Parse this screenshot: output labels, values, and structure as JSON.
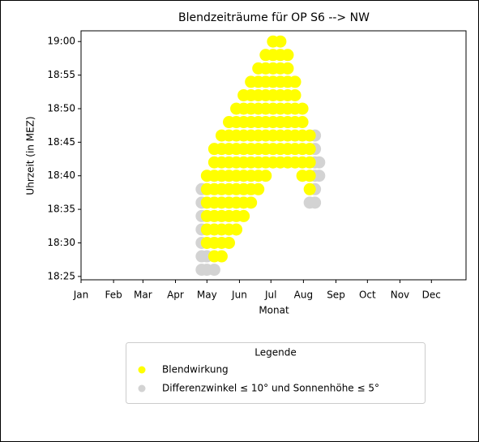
{
  "chart_data": {
    "type": "scatter",
    "title": "Blendzeiträume für OP S6 --> NW",
    "x_label": "Monat",
    "y_label": "Uhrzeit (in MEZ)",
    "xlim": [
      1,
      368
    ],
    "ylim": [
      1104.5,
      1141.6
    ],
    "xticks": [
      {
        "value": 1,
        "label": "Jan"
      },
      {
        "value": 32,
        "label": "Feb"
      },
      {
        "value": 60,
        "label": "Mar"
      },
      {
        "value": 91,
        "label": "Apr"
      },
      {
        "value": 121,
        "label": "May"
      },
      {
        "value": 152,
        "label": "Jun"
      },
      {
        "value": 182,
        "label": "Jul"
      },
      {
        "value": 213,
        "label": "Aug"
      },
      {
        "value": 244,
        "label": "Sep"
      },
      {
        "value": 274,
        "label": "Oct"
      },
      {
        "value": 305,
        "label": "Nov"
      },
      {
        "value": 335,
        "label": "Dec"
      }
    ],
    "yticks": [
      {
        "value": 1105,
        "label": "18:25"
      },
      {
        "value": 1110,
        "label": "18:30"
      },
      {
        "value": 1115,
        "label": "18:35"
      },
      {
        "value": 1120,
        "label": "18:40"
      },
      {
        "value": 1125,
        "label": "18:45"
      },
      {
        "value": 1130,
        "label": "18:50"
      },
      {
        "value": 1135,
        "label": "18:55"
      },
      {
        "value": 1140,
        "label": "19:00"
      }
    ],
    "legend_title": "Legende",
    "legend_position": "below",
    "series": [
      {
        "name": "Differenzwinkel ≤ 10° und Sonnenhöhe ≤ 5°",
        "color": "#d3d3d3",
        "x": [
          116,
          116,
          116,
          116,
          116,
          116,
          116,
          121,
          121,
          128,
          219,
          224,
          224,
          224,
          224,
          224,
          224,
          228,
          228
        ],
        "values": [
          1106,
          1108,
          1110,
          1112,
          1114,
          1116,
          1118,
          1106,
          1108,
          1106,
          1116,
          1116,
          1118,
          1120,
          1122,
          1124,
          1126,
          1120,
          1122
        ]
      },
      {
        "name": "Blendwirkung",
        "color": "#ffff00",
        "x": [
          121,
          121,
          121,
          121,
          121,
          121,
          128,
          128,
          128,
          128,
          128,
          128,
          128,
          128,
          128,
          135,
          135,
          135,
          135,
          135,
          135,
          135,
          135,
          135,
          135,
          142,
          142,
          142,
          142,
          142,
          142,
          142,
          142,
          142,
          142,
          149,
          149,
          149,
          149,
          149,
          149,
          149,
          149,
          149,
          149,
          156,
          156,
          156,
          156,
          156,
          156,
          156,
          156,
          156,
          156,
          163,
          163,
          163,
          163,
          163,
          163,
          163,
          163,
          163,
          163,
          170,
          170,
          170,
          170,
          170,
          170,
          170,
          170,
          170,
          170,
          177,
          177,
          177,
          177,
          177,
          177,
          177,
          177,
          177,
          177,
          184,
          184,
          184,
          184,
          184,
          184,
          184,
          184,
          184,
          184,
          191,
          191,
          191,
          191,
          191,
          191,
          191,
          191,
          191,
          191,
          198,
          198,
          198,
          198,
          198,
          198,
          198,
          198,
          198,
          205,
          205,
          205,
          205,
          205,
          205,
          205,
          212,
          212,
          212,
          212,
          212,
          212,
          219,
          219,
          219,
          219,
          219
        ],
        "values": [
          1110,
          1112,
          1114,
          1116,
          1118,
          1120,
          1108,
          1110,
          1112,
          1114,
          1116,
          1118,
          1120,
          1122,
          1124,
          1108,
          1110,
          1112,
          1114,
          1116,
          1118,
          1120,
          1122,
          1124,
          1126,
          1110,
          1112,
          1114,
          1116,
          1118,
          1120,
          1122,
          1124,
          1126,
          1128,
          1112,
          1114,
          1116,
          1118,
          1120,
          1122,
          1124,
          1126,
          1128,
          1130,
          1114,
          1116,
          1118,
          1120,
          1122,
          1124,
          1126,
          1128,
          1130,
          1132,
          1116,
          1118,
          1120,
          1122,
          1124,
          1126,
          1128,
          1130,
          1132,
          1134,
          1118,
          1120,
          1122,
          1124,
          1126,
          1128,
          1130,
          1132,
          1134,
          1136,
          1120,
          1122,
          1124,
          1126,
          1128,
          1130,
          1132,
          1134,
          1136,
          1138,
          1122,
          1124,
          1126,
          1128,
          1130,
          1132,
          1134,
          1136,
          1138,
          1140,
          1122,
          1124,
          1126,
          1128,
          1130,
          1132,
          1134,
          1136,
          1138,
          1140,
          1122,
          1124,
          1126,
          1128,
          1130,
          1132,
          1134,
          1136,
          1138,
          1122,
          1124,
          1126,
          1128,
          1130,
          1132,
          1134,
          1120,
          1122,
          1124,
          1126,
          1128,
          1130,
          1118,
          1120,
          1122,
          1124,
          1126
        ]
      }
    ]
  }
}
